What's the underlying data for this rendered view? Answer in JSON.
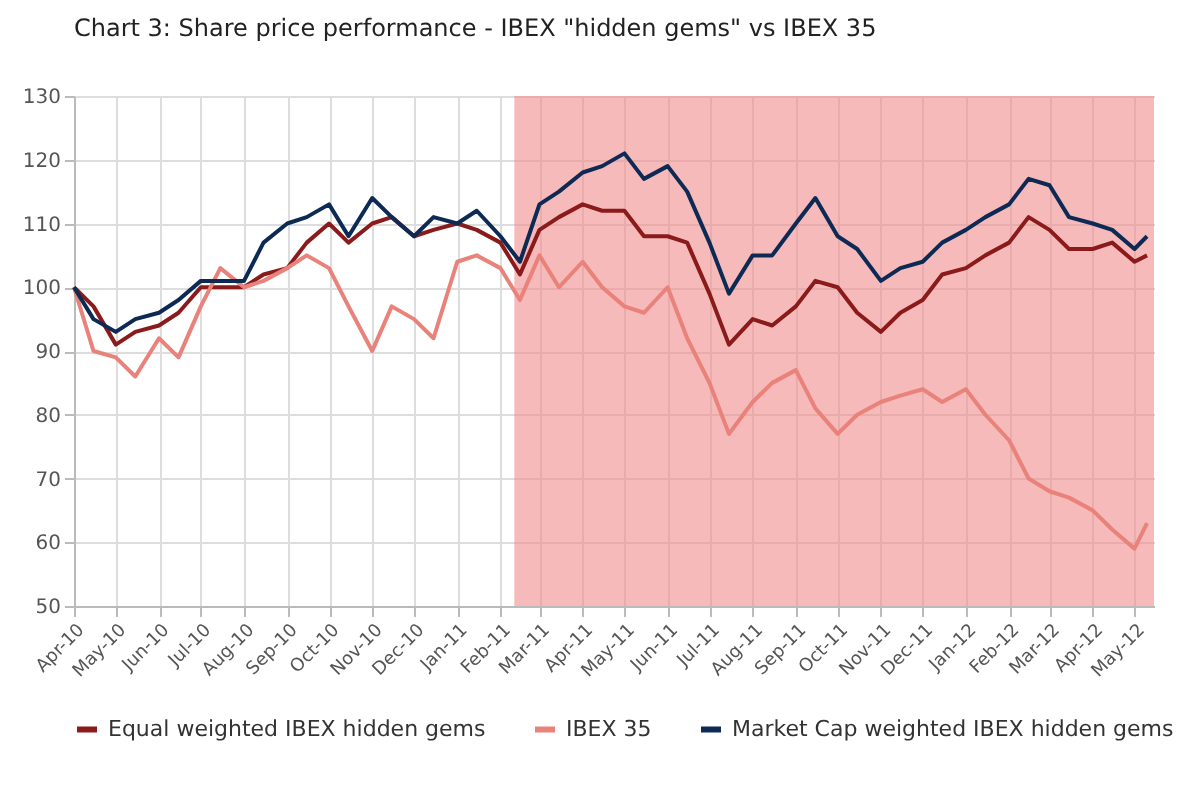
{
  "chart_data": {
    "type": "line",
    "title": "Chart 3: Share price performance - IBEX \"hidden gems\" vs IBEX 35",
    "x": [
      "2010-04-01",
      "2010-04-15",
      "2010-05-01",
      "2010-05-15",
      "2010-06-01",
      "2010-06-15",
      "2010-07-01",
      "2010-07-15",
      "2010-08-01",
      "2010-08-15",
      "2010-09-01",
      "2010-09-15",
      "2010-10-01",
      "2010-10-15",
      "2010-11-01",
      "2010-11-15",
      "2010-12-01",
      "2010-12-15",
      "2011-01-01",
      "2011-01-15",
      "2011-02-01",
      "2011-02-15",
      "2011-03-01",
      "2011-03-15",
      "2011-04-01",
      "2011-04-15",
      "2011-05-01",
      "2011-05-15",
      "2011-06-01",
      "2011-06-15",
      "2011-07-01",
      "2011-07-15",
      "2011-08-01",
      "2011-08-15",
      "2011-09-01",
      "2011-09-15",
      "2011-10-01",
      "2011-10-15",
      "2011-11-01",
      "2011-11-15",
      "2011-12-01",
      "2011-12-15",
      "2012-01-01",
      "2012-01-15",
      "2012-02-01",
      "2012-02-15",
      "2012-03-01",
      "2012-03-15",
      "2012-04-01",
      "2012-04-15",
      "2012-05-01",
      "2012-05-10"
    ],
    "series": [
      {
        "name": "Equal weighted IBEX hidden gems",
        "color": "#8b1a1a",
        "values": [
          100,
          97,
          91,
          93,
          94,
          96,
          100,
          100,
          100,
          102,
          103,
          107,
          110,
          107,
          110,
          111,
          108,
          109,
          110,
          109,
          107,
          102,
          109,
          111,
          113,
          112,
          112,
          108,
          108,
          107,
          99,
          91,
          95,
          94,
          97,
          101,
          100,
          96,
          93,
          96,
          98,
          102,
          103,
          105,
          107,
          111,
          109,
          106,
          106,
          107,
          104,
          105
        ]
      },
      {
        "name": "IBEX 35",
        "color": "#e8827a",
        "values": [
          100,
          90,
          89,
          86,
          92,
          89,
          97,
          103,
          100,
          101,
          103,
          105,
          103,
          97,
          90,
          97,
          95,
          92,
          104,
          105,
          103,
          98,
          105,
          100,
          104,
          100,
          97,
          96,
          100,
          92,
          85,
          77,
          82,
          85,
          87,
          81,
          77,
          80,
          82,
          83,
          84,
          82,
          84,
          80,
          76,
          70,
          68,
          67,
          65,
          62,
          59,
          63
        ]
      },
      {
        "name": "Market Cap weighted IBEX hidden gems",
        "color": "#0d2a55",
        "values": [
          100,
          95,
          93,
          95,
          96,
          98,
          101,
          101,
          101,
          107,
          110,
          111,
          113,
          108,
          114,
          111,
          108,
          111,
          110,
          112,
          108,
          104,
          113,
          115,
          118,
          119,
          121,
          117,
          119,
          115,
          107,
          99,
          105,
          105,
          110,
          114,
          108,
          106,
          101,
          103,
          104,
          107,
          109,
          111,
          113,
          117,
          116,
          111,
          110,
          109,
          106,
          108
        ]
      }
    ],
    "xlim": [
      "2010-04-01",
      "2012-05-15"
    ],
    "ylim": [
      50,
      130
    ],
    "yticks": [
      50,
      60,
      70,
      80,
      90,
      100,
      110,
      120,
      130
    ],
    "xticks": [
      {
        "value": "2010-04",
        "label": "Apr-10"
      },
      {
        "value": "2010-05",
        "label": "May-10"
      },
      {
        "value": "2010-06",
        "label": "Jun-10"
      },
      {
        "value": "2010-07",
        "label": "Jul-10"
      },
      {
        "value": "2010-08",
        "label": "Aug-10"
      },
      {
        "value": "2010-09",
        "label": "Sep-10"
      },
      {
        "value": "2010-10",
        "label": "Oct-10"
      },
      {
        "value": "2010-11",
        "label": "Nov-10"
      },
      {
        "value": "2010-12",
        "label": "Dec-10"
      },
      {
        "value": "2011-01",
        "label": "Jan-11"
      },
      {
        "value": "2011-02",
        "label": "Feb-11"
      },
      {
        "value": "2011-03",
        "label": "Mar-11"
      },
      {
        "value": "2011-04",
        "label": "Apr-11"
      },
      {
        "value": "2011-05",
        "label": "May-11"
      },
      {
        "value": "2011-06",
        "label": "Jun-11"
      },
      {
        "value": "2011-07",
        "label": "Jul-11"
      },
      {
        "value": "2011-08",
        "label": "Aug-11"
      },
      {
        "value": "2011-09",
        "label": "Sep-11"
      },
      {
        "value": "2011-10",
        "label": "Oct-11"
      },
      {
        "value": "2011-11",
        "label": "Nov-11"
      },
      {
        "value": "2011-12",
        "label": "Dec-11"
      },
      {
        "value": "2012-01",
        "label": "Jan-12"
      },
      {
        "value": "2012-02",
        "label": "Feb-12"
      },
      {
        "value": "2012-03",
        "label": "Mar-12"
      },
      {
        "value": "2012-04",
        "label": "Apr-12"
      },
      {
        "value": "2012-05",
        "label": "May-12"
      }
    ],
    "bands": [
      {
        "axis": "x",
        "from": "2011-02-11",
        "to": "2012-05-15",
        "color": "#f08c8c"
      }
    ],
    "grid": true,
    "legend": "bottom"
  }
}
